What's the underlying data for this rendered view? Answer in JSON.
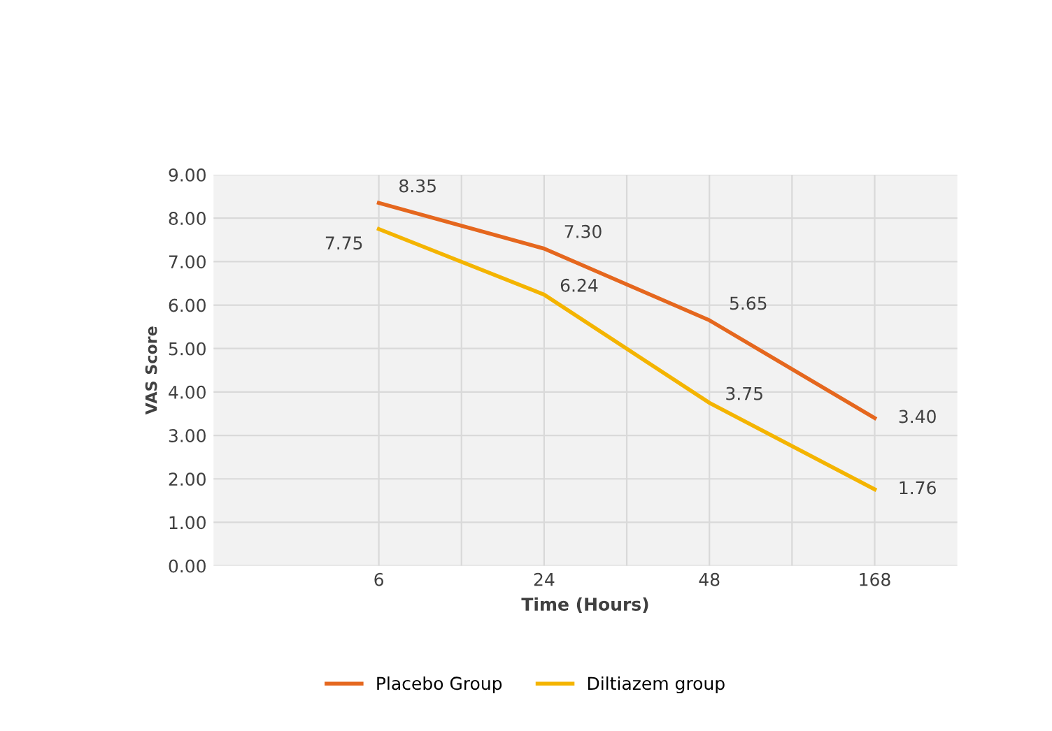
{
  "chart_data": {
    "type": "line",
    "xlabel": "Time (Hours)",
    "ylabel": "VAS Score",
    "categories": [
      "6",
      "24",
      "48",
      "168"
    ],
    "series": [
      {
        "name": "Placebo Group",
        "color": "#e5671e",
        "values": [
          8.35,
          7.3,
          5.65,
          3.4
        ],
        "value_labels": [
          "8.35",
          "7.30",
          "5.65",
          "3.40"
        ]
      },
      {
        "name": "Diltiazem group",
        "color": "#f4b400",
        "values": [
          7.75,
          6.24,
          3.75,
          1.76
        ],
        "value_labels": [
          "7.75",
          "6.24",
          "3.75",
          "1.76"
        ]
      }
    ],
    "ylim": [
      0,
      9
    ],
    "yticks": [
      {
        "value": 0,
        "label": "0.00"
      },
      {
        "value": 1,
        "label": "1.00"
      },
      {
        "value": 2,
        "label": "2.00"
      },
      {
        "value": 3,
        "label": "3.00"
      },
      {
        "value": 4,
        "label": "4.00"
      },
      {
        "value": 5,
        "label": "5.00"
      },
      {
        "value": 6,
        "label": "6.00"
      },
      {
        "value": 7,
        "label": "7.00"
      },
      {
        "value": 8,
        "label": "8.00"
      },
      {
        "value": 9,
        "label": "9.00"
      }
    ],
    "grid": true,
    "legend": "bottom",
    "marker": "none",
    "line_style": "solid"
  }
}
